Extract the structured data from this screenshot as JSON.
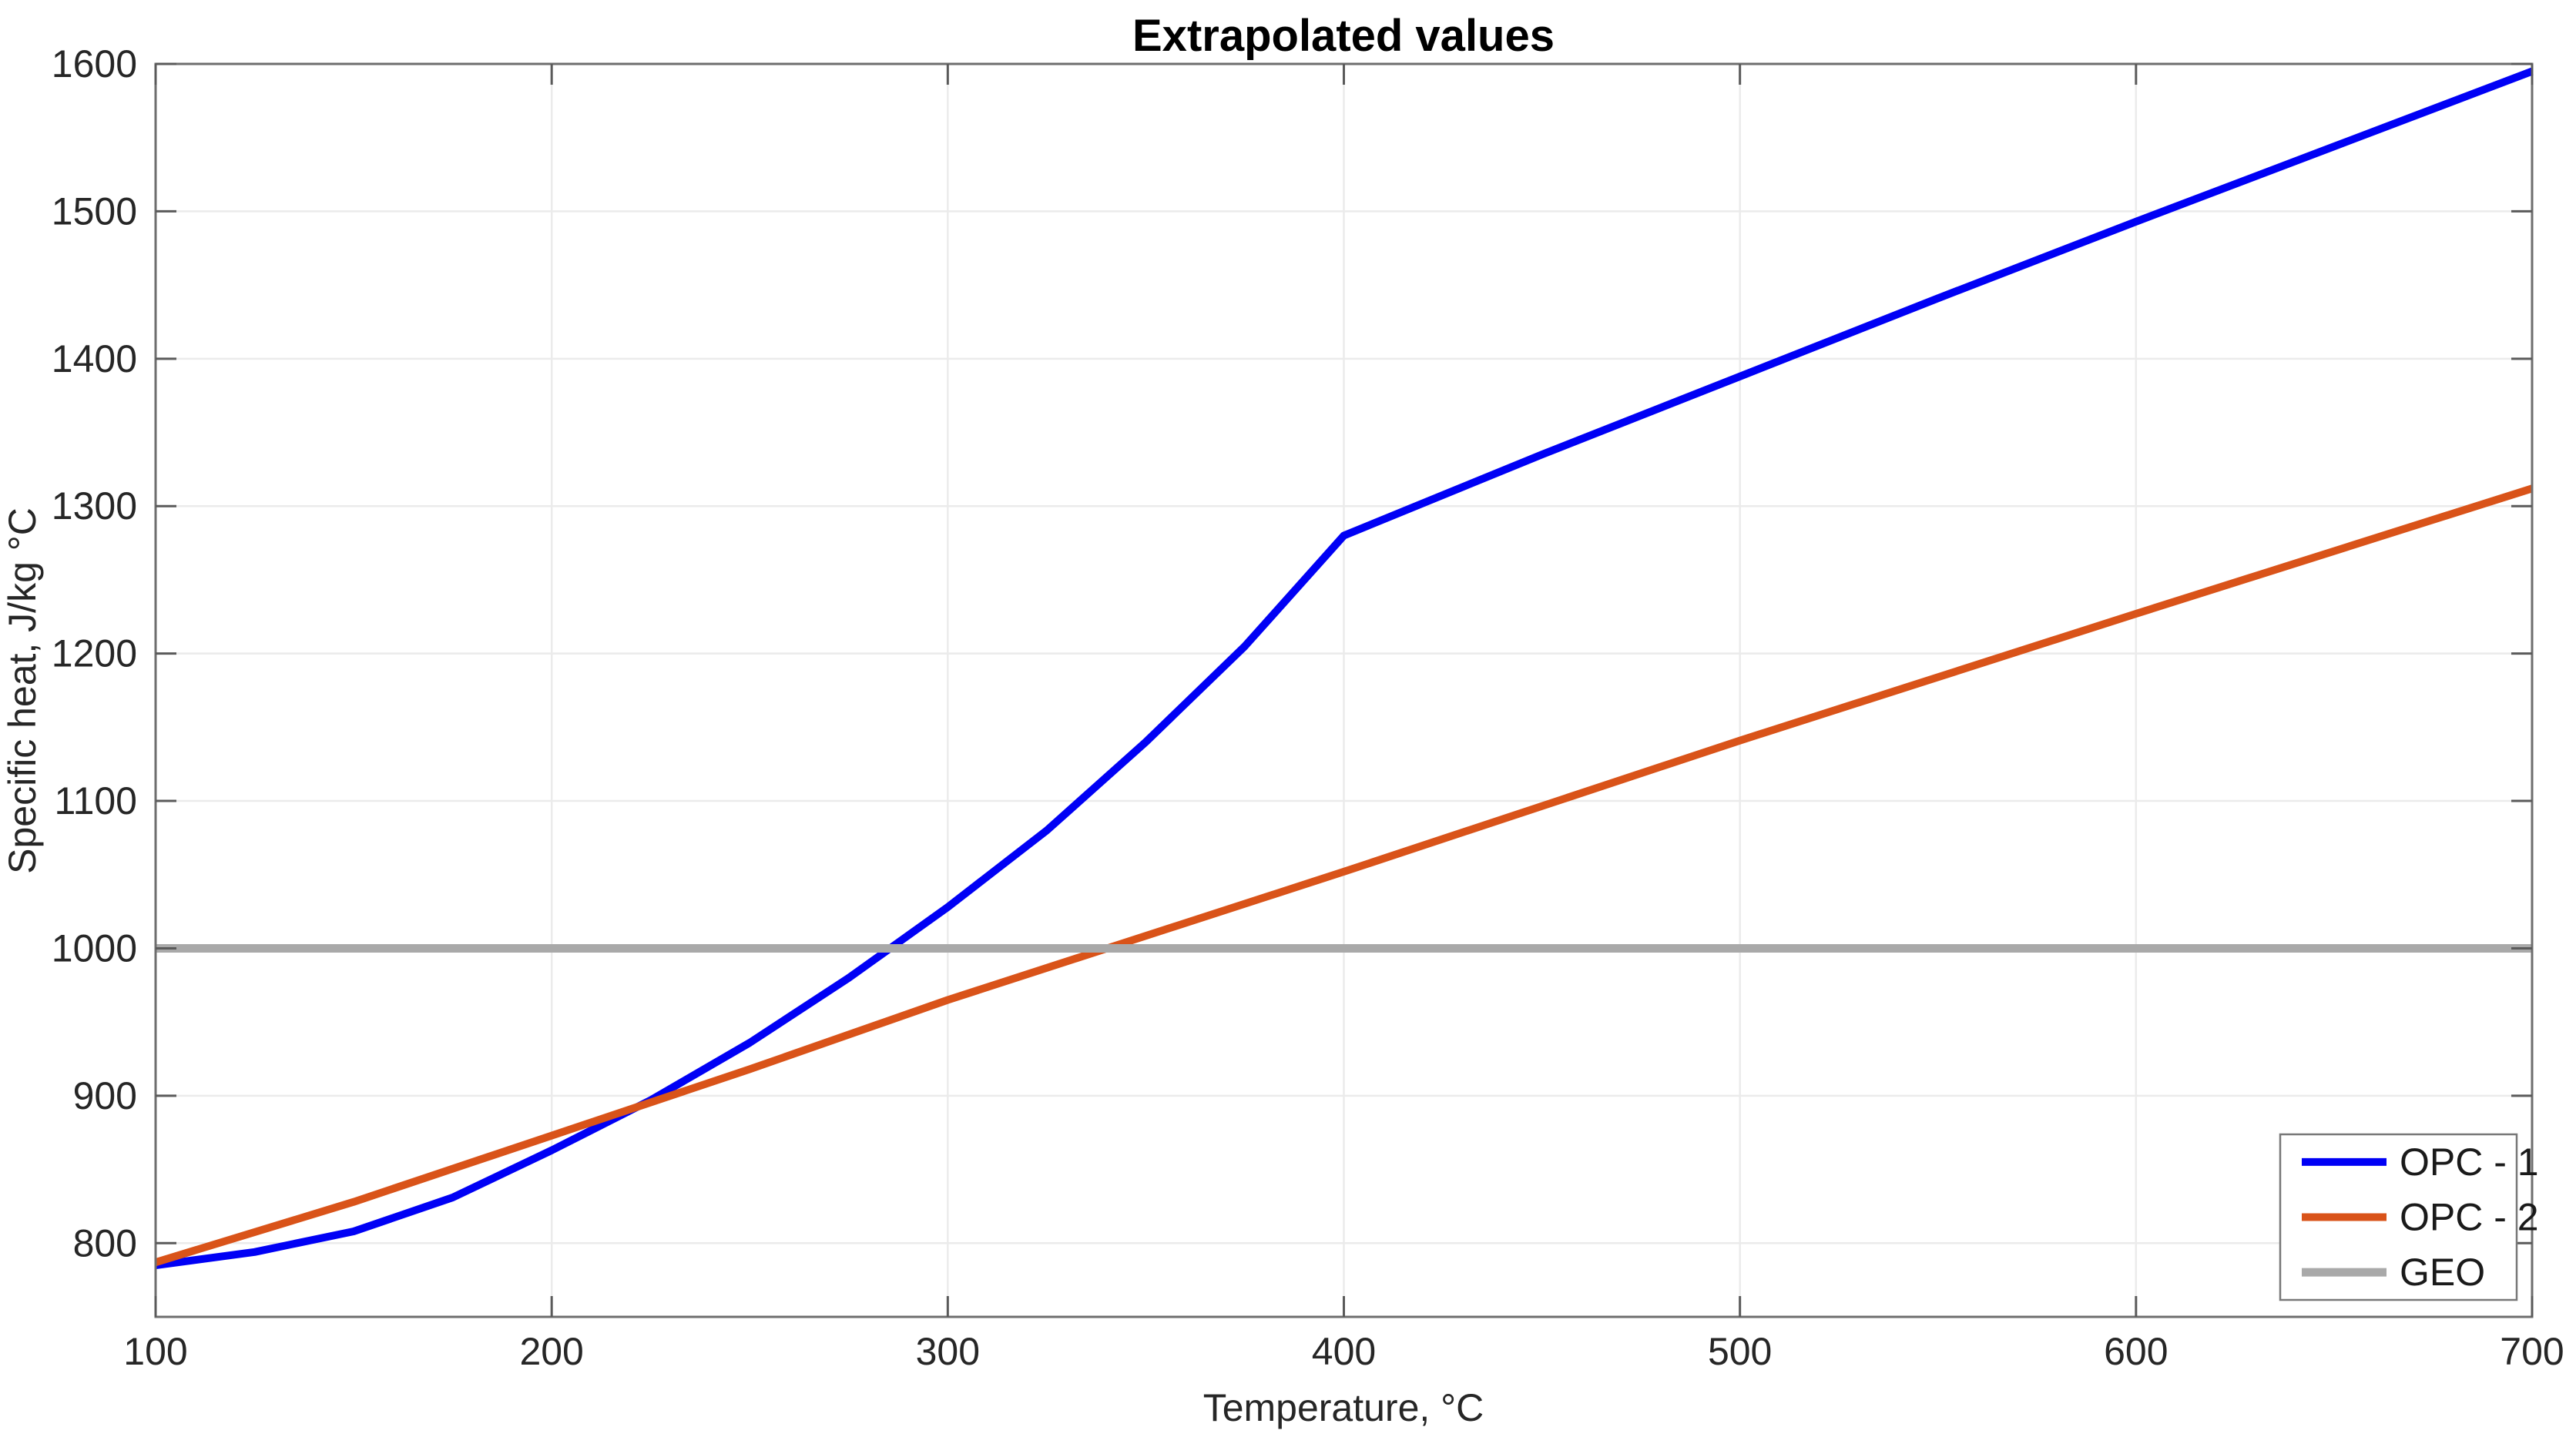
{
  "chart_data": {
    "type": "line",
    "title": "Extrapolated values",
    "xlabel": "Temperature, °C",
    "ylabel": "Specific heat, J/kg °C",
    "xlim": [
      100,
      700
    ],
    "ylim": [
      750,
      1600
    ],
    "xticks": [
      100,
      200,
      300,
      400,
      500,
      600,
      700
    ],
    "yticks": [
      800,
      900,
      1000,
      1100,
      1200,
      1300,
      1400,
      1500,
      1600
    ],
    "grid": true,
    "legend": {
      "position": "southeast",
      "entries": [
        "OPC - 1",
        "OPC - 2",
        "GEO"
      ]
    },
    "series": [
      {
        "name": "OPC - 1",
        "color": "#0000F5",
        "line_width": 10,
        "points": [
          [
            100,
            785
          ],
          [
            125,
            794
          ],
          [
            150,
            808
          ],
          [
            175,
            831
          ],
          [
            200,
            863
          ],
          [
            225,
            897
          ],
          [
            250,
            936
          ],
          [
            275,
            980
          ],
          [
            300,
            1028
          ],
          [
            325,
            1080
          ],
          [
            350,
            1140
          ],
          [
            375,
            1205
          ],
          [
            400,
            1280
          ],
          [
            450,
            1335
          ],
          [
            500,
            1388
          ],
          [
            550,
            1441
          ],
          [
            600,
            1493
          ],
          [
            650,
            1544
          ],
          [
            700,
            1595
          ]
        ]
      },
      {
        "name": "OPC - 2",
        "color": "#D95319",
        "line_width": 10,
        "points": [
          [
            100,
            787
          ],
          [
            150,
            828
          ],
          [
            200,
            873
          ],
          [
            250,
            918
          ],
          [
            300,
            965
          ],
          [
            400,
            1052
          ],
          [
            500,
            1141
          ],
          [
            600,
            1227
          ],
          [
            700,
            1312
          ]
        ]
      },
      {
        "name": "GEO",
        "color": "#A9A9A9",
        "line_width": 11,
        "points": [
          [
            100,
            1000
          ],
          [
            700,
            1000
          ]
        ]
      }
    ],
    "colors": {
      "background": "#FFFFFF",
      "grid": "#EBEBEB",
      "axis_box": "#6E6E6E",
      "tick_mark": "#5A5A5A",
      "tick_label": "#262626",
      "title": "#000000",
      "legend_border": "#787878",
      "legend_background": "#FFFFFF"
    }
  }
}
